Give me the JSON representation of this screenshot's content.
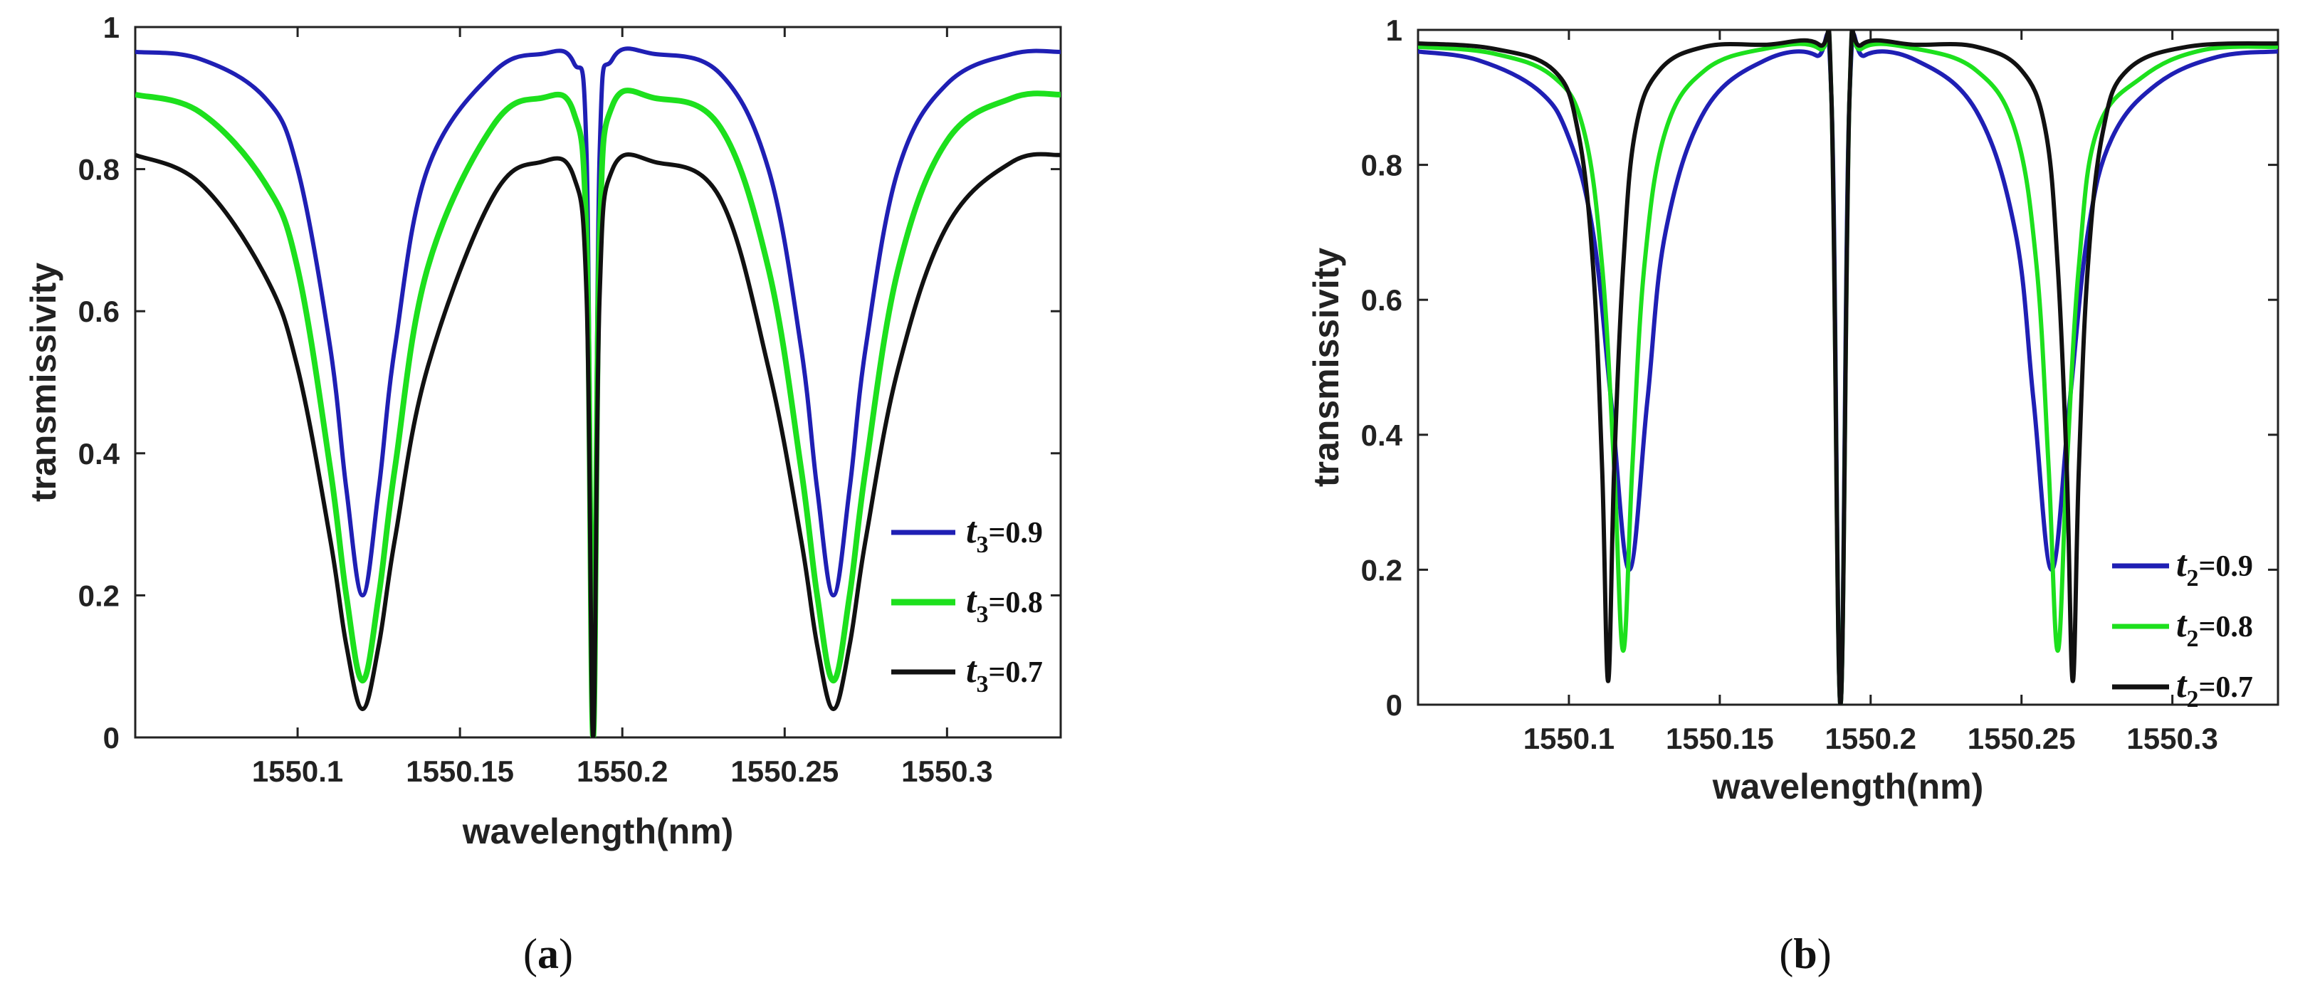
{
  "chart_data": [
    {
      "type": "line",
      "panel": "a",
      "caption_letter": "a",
      "xlabel": "wavelength(nm)",
      "ylabel": "transmissivity",
      "xlim": [
        1550.05,
        1550.335
      ],
      "ylim": [
        0,
        1
      ],
      "xticks": [
        1550.1,
        1550.15,
        1550.2,
        1550.25,
        1550.3
      ],
      "xtick_labels": [
        "1550.1",
        "1550.15",
        "1550.2",
        "1550.25",
        "1550.3"
      ],
      "yticks": [
        0,
        0.2,
        0.4,
        0.6,
        0.8,
        1
      ],
      "ytick_labels": [
        "0",
        "0.2",
        "0.4",
        "0.6",
        "0.8",
        "1"
      ],
      "legend_position": "bottom-right",
      "series": [
        {
          "name": "t3=0.9",
          "symbol": "t",
          "sub": "3",
          "value_text": "=0.9",
          "color": "#1f1fb4",
          "width": 6,
          "x": [
            1550.05,
            1550.07,
            1550.09,
            1550.1,
            1550.11,
            1550.115,
            1550.12,
            1550.125,
            1550.13,
            1550.14,
            1550.16,
            1550.175,
            1550.185,
            1550.189,
            1550.191,
            1550.193,
            1550.197,
            1550.21,
            1550.23,
            1550.245,
            1550.255,
            1550.26,
            1550.265,
            1550.27,
            1550.275,
            1550.285,
            1550.3,
            1550.32,
            1550.335
          ],
          "y": [
            0.965,
            0.955,
            0.9,
            0.8,
            0.55,
            0.35,
            0.2,
            0.35,
            0.55,
            0.8,
            0.935,
            0.962,
            0.95,
            0.82,
            0.0,
            0.82,
            0.955,
            0.962,
            0.935,
            0.8,
            0.55,
            0.35,
            0.2,
            0.35,
            0.55,
            0.8,
            0.92,
            0.962,
            0.965
          ]
        },
        {
          "name": "t3=0.8",
          "symbol": "t",
          "sub": "3",
          "value_text": "=0.8",
          "color": "#1de01d",
          "width": 8,
          "x": [
            1550.05,
            1550.07,
            1550.09,
            1550.1,
            1550.11,
            1550.115,
            1550.12,
            1550.125,
            1550.13,
            1550.14,
            1550.16,
            1550.175,
            1550.185,
            1550.189,
            1550.191,
            1550.193,
            1550.197,
            1550.21,
            1550.23,
            1550.245,
            1550.255,
            1550.26,
            1550.265,
            1550.27,
            1550.275,
            1550.285,
            1550.3,
            1550.32,
            1550.335
          ],
          "y": [
            0.905,
            0.88,
            0.78,
            0.66,
            0.38,
            0.2,
            0.08,
            0.2,
            0.38,
            0.66,
            0.86,
            0.9,
            0.88,
            0.7,
            0.0,
            0.7,
            0.89,
            0.9,
            0.86,
            0.66,
            0.38,
            0.2,
            0.08,
            0.2,
            0.38,
            0.66,
            0.84,
            0.9,
            0.905
          ]
        },
        {
          "name": "t3=0.7",
          "symbol": "t",
          "sub": "3",
          "value_text": "=0.7",
          "color": "#111111",
          "width": 6,
          "x": [
            1550.05,
            1550.07,
            1550.09,
            1550.1,
            1550.11,
            1550.115,
            1550.12,
            1550.125,
            1550.13,
            1550.14,
            1550.16,
            1550.175,
            1550.185,
            1550.189,
            1550.191,
            1550.193,
            1550.197,
            1550.21,
            1550.23,
            1550.245,
            1550.255,
            1550.26,
            1550.265,
            1550.27,
            1550.275,
            1550.285,
            1550.3,
            1550.32,
            1550.335
          ],
          "y": [
            0.82,
            0.78,
            0.65,
            0.52,
            0.28,
            0.13,
            0.04,
            0.13,
            0.28,
            0.52,
            0.76,
            0.81,
            0.79,
            0.62,
            0.0,
            0.62,
            0.8,
            0.81,
            0.76,
            0.52,
            0.28,
            0.13,
            0.04,
            0.13,
            0.28,
            0.52,
            0.72,
            0.81,
            0.82
          ]
        }
      ]
    },
    {
      "type": "line",
      "panel": "b",
      "caption_letter": "b",
      "xlabel": "wavelength(nm)",
      "ylabel": "transmissivity",
      "xlim": [
        1550.05,
        1550.335
      ],
      "ylim": [
        0,
        1
      ],
      "xticks": [
        1550.1,
        1550.15,
        1550.2,
        1550.25,
        1550.3
      ],
      "xtick_labels": [
        "1550.1",
        "1550.15",
        "1550.2",
        "1550.25",
        "1550.3"
      ],
      "yticks": [
        0,
        0.2,
        0.4,
        0.6,
        0.8,
        1
      ],
      "ytick_labels": [
        "0",
        "0.2",
        "0.4",
        "0.6",
        "0.8",
        "1"
      ],
      "legend_position": "bottom-right",
      "series": [
        {
          "name": "t2=0.9",
          "symbol": "t",
          "sub": "2",
          "value_text": "=0.9",
          "color": "#1f1fb4",
          "width": 6,
          "x": [
            1550.05,
            1550.07,
            1550.09,
            1550.1,
            1550.108,
            1550.114,
            1550.12,
            1550.126,
            1550.132,
            1550.145,
            1550.165,
            1550.182,
            1550.187,
            1550.19,
            1550.193,
            1550.198,
            1550.215,
            1550.235,
            1550.248,
            1550.254,
            1550.26,
            1550.266,
            1550.272,
            1550.28,
            1550.295,
            1550.315,
            1550.335
          ],
          "y": [
            0.968,
            0.955,
            0.91,
            0.84,
            0.7,
            0.45,
            0.2,
            0.45,
            0.7,
            0.88,
            0.955,
            0.962,
            0.9,
            0.0,
            0.9,
            0.962,
            0.955,
            0.88,
            0.7,
            0.45,
            0.2,
            0.45,
            0.7,
            0.84,
            0.92,
            0.96,
            0.968
          ]
        },
        {
          "name": "t2=0.8",
          "symbol": "t",
          "sub": "2",
          "value_text": "=0.8",
          "color": "#1de01d",
          "width": 6,
          "x": [
            1550.05,
            1550.075,
            1550.095,
            1550.105,
            1550.111,
            1550.115,
            1550.118,
            1550.121,
            1550.125,
            1550.132,
            1550.145,
            1550.165,
            1550.183,
            1550.187,
            1550.19,
            1550.193,
            1550.197,
            1550.215,
            1550.235,
            1550.248,
            1550.255,
            1550.259,
            1550.262,
            1550.265,
            1550.269,
            1550.275,
            1550.29,
            1550.31,
            1550.335
          ],
          "y": [
            0.975,
            0.965,
            0.93,
            0.85,
            0.65,
            0.35,
            0.08,
            0.35,
            0.65,
            0.85,
            0.94,
            0.972,
            0.972,
            0.9,
            0.0,
            0.9,
            0.972,
            0.972,
            0.94,
            0.85,
            0.65,
            0.35,
            0.08,
            0.35,
            0.65,
            0.85,
            0.93,
            0.97,
            0.975
          ]
        },
        {
          "name": "t2=0.7",
          "symbol": "t",
          "sub": "2",
          "value_text": "=0.7",
          "color": "#111111",
          "width": 6,
          "x": [
            1550.05,
            1550.075,
            1550.095,
            1550.103,
            1550.108,
            1550.111,
            1550.113,
            1550.115,
            1550.118,
            1550.122,
            1550.13,
            1550.145,
            1550.165,
            1550.183,
            1550.187,
            1550.19,
            1550.193,
            1550.197,
            1550.215,
            1550.235,
            1550.25,
            1550.258,
            1550.262,
            1550.265,
            1550.267,
            1550.269,
            1550.272,
            1550.277,
            1550.285,
            1550.305,
            1550.335
          ],
          "y": [
            0.98,
            0.972,
            0.94,
            0.85,
            0.65,
            0.35,
            0.035,
            0.35,
            0.65,
            0.85,
            0.94,
            0.975,
            0.978,
            0.978,
            0.9,
            0.0,
            0.9,
            0.978,
            0.978,
            0.975,
            0.94,
            0.85,
            0.65,
            0.35,
            0.035,
            0.35,
            0.65,
            0.85,
            0.94,
            0.975,
            0.98
          ]
        }
      ]
    }
  ]
}
